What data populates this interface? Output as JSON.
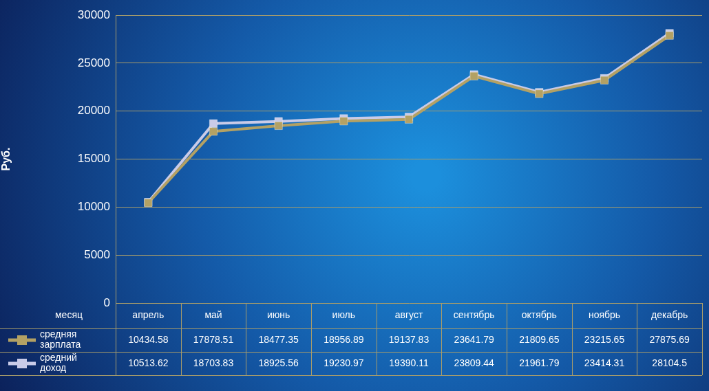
{
  "chart_data": {
    "type": "line",
    "y_label": "Руб.",
    "x_label": "месяц",
    "categories": [
      "апрель",
      "май",
      "июнь",
      "июль",
      "август",
      "сентябрь",
      "октябрь",
      "ноябрь",
      "декабрь"
    ],
    "series": [
      {
        "name": "средняя зарплата",
        "color": "#b3a164",
        "marker": "square",
        "values": [
          10434.58,
          17878.51,
          18477.35,
          18956.89,
          19137.83,
          23641.79,
          21809.65,
          23215.65,
          27875.69
        ]
      },
      {
        "name": "средний доход",
        "color": "#c9cbe8",
        "marker": "square",
        "values": [
          10513.62,
          18703.83,
          18925.56,
          19230.97,
          19390.11,
          23809.44,
          21961.79,
          23414.31,
          28104.5
        ]
      }
    ],
    "ylim": [
      0,
      30000
    ],
    "yticks": [
      0,
      5000,
      10000,
      15000,
      20000,
      25000,
      30000
    ],
    "grid": true,
    "legend": "bottom"
  }
}
